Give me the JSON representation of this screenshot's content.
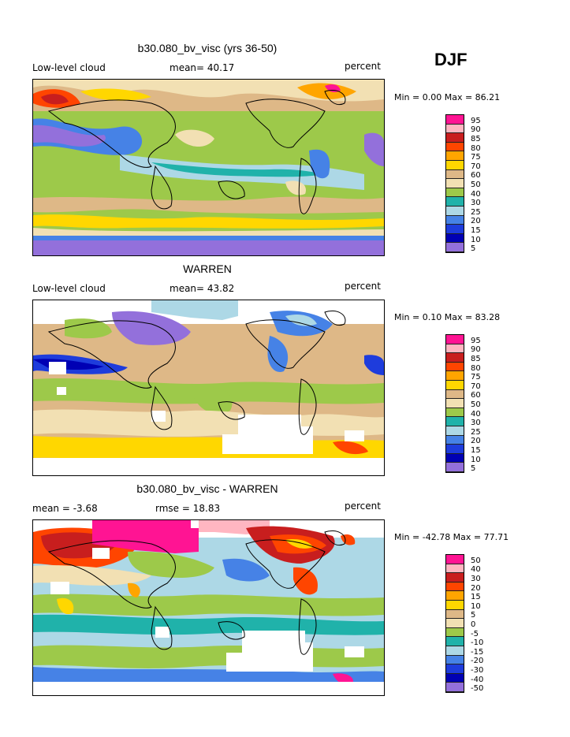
{
  "season": "DJF",
  "panels": [
    {
      "title": "b30.080_bv_visc (yrs 36-50)",
      "left_label": "Low-level cloud",
      "mid_label": "mean=  40.17",
      "right_label": "percent",
      "minmax": "Min =   0.00 Max =  86.21",
      "legend": {
        "colors": [
          "#ff1493",
          "#ffb6c1",
          "#c81e1e",
          "#ff4500",
          "#ffa500",
          "#ffd700",
          "#deb887",
          "#f2e0b3",
          "#9dc94a",
          "#20b2aa",
          "#add8e6",
          "#4682e6",
          "#1e3cdc",
          "#0000b4",
          "#9370db"
        ],
        "labels": [
          "95",
          "90",
          "85",
          "80",
          "75",
          "70",
          "60",
          "50",
          "40",
          "30",
          "25",
          "20",
          "15",
          "10",
          "5"
        ]
      }
    },
    {
      "title": "WARREN",
      "left_label": "Low-level cloud",
      "mid_label": "mean=  43.82",
      "right_label": "percent",
      "minmax": "Min =   0.10 Max =  83.28",
      "legend": {
        "colors": [
          "#ff1493",
          "#ffb6c1",
          "#c81e1e",
          "#ff4500",
          "#ffa500",
          "#ffd700",
          "#deb887",
          "#f2e0b3",
          "#9dc94a",
          "#20b2aa",
          "#add8e6",
          "#4682e6",
          "#1e3cdc",
          "#0000b4",
          "#9370db"
        ],
        "labels": [
          "95",
          "90",
          "85",
          "80",
          "75",
          "70",
          "60",
          "50",
          "40",
          "30",
          "25",
          "20",
          "15",
          "10",
          "5"
        ]
      }
    },
    {
      "title": "b30.080_bv_visc - WARREN",
      "left_label": "mean =  -3.68",
      "mid_label": "rmse =  18.83",
      "right_label": "percent",
      "minmax": "Min = -42.78 Max =  77.71",
      "legend": {
        "colors": [
          "#ff1493",
          "#ffb6c1",
          "#c81e1e",
          "#ff4500",
          "#ffa500",
          "#ffd700",
          "#deb887",
          "#f2e0b3",
          "#9dc94a",
          "#20b2aa",
          "#add8e6",
          "#4682e6",
          "#1e3cdc",
          "#0000b4",
          "#9370db"
        ],
        "labels": [
          "50",
          "40",
          "30",
          "20",
          "15",
          "10",
          "5",
          "0",
          "-5",
          "-10",
          "-15",
          "-20",
          "-30",
          "-40",
          "-50"
        ]
      }
    }
  ]
}
